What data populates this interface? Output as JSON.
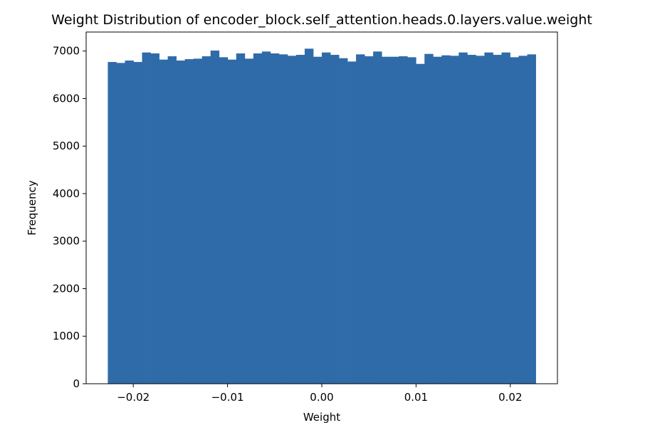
{
  "chart_data": {
    "type": "bar",
    "title": "Weight Distribution of encoder_block.self_attention.heads.0.layers.value.weight",
    "xlabel": "Weight",
    "ylabel": "Frequency",
    "xlim": [
      -0.025,
      0.025
    ],
    "ylim": [
      0,
      7400
    ],
    "xticks": [
      -0.02,
      -0.01,
      0.0,
      0.01,
      0.02
    ],
    "xtick_labels": [
      "−0.02",
      "−0.01",
      "0.00",
      "0.01",
      "0.02"
    ],
    "yticks": [
      0,
      1000,
      2000,
      3000,
      4000,
      5000,
      6000,
      7000
    ],
    "ytick_labels": [
      "0",
      "1000",
      "2000",
      "3000",
      "4000",
      "5000",
      "6000",
      "7000"
    ],
    "grid": false,
    "bar_color": "#2f6ba8",
    "bin_range": [
      -0.0227,
      0.0227
    ],
    "bin_count": 50,
    "values": [
      6770,
      6750,
      6800,
      6770,
      6970,
      6950,
      6820,
      6890,
      6800,
      6830,
      6840,
      6890,
      7010,
      6870,
      6820,
      6950,
      6840,
      6950,
      6990,
      6950,
      6930,
      6900,
      6920,
      7050,
      6880,
      6970,
      6920,
      6850,
      6780,
      6930,
      6890,
      6990,
      6880,
      6880,
      6890,
      6870,
      6730,
      6940,
      6880,
      6910,
      6900,
      6970,
      6920,
      6900,
      6970,
      6920,
      6970,
      6870,
      6900,
      6930
    ]
  }
}
